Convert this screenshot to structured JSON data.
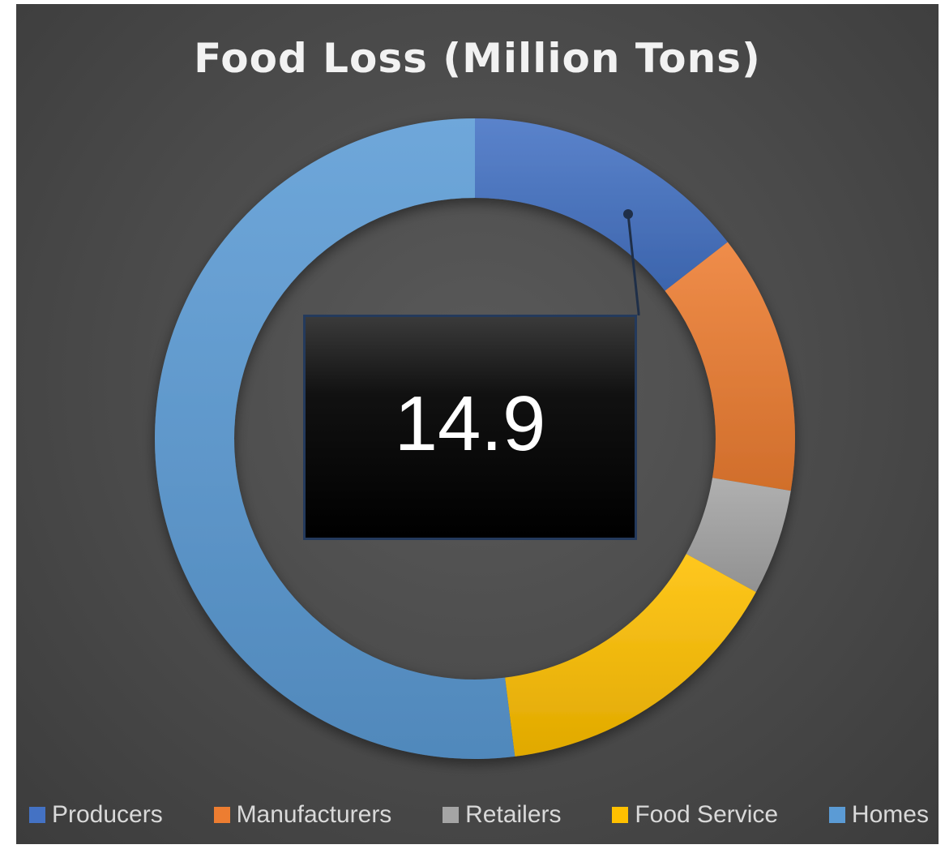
{
  "chart_data": {
    "type": "pie",
    "variant": "donut",
    "title": "Food Loss (Million Tons)",
    "categories": [
      "Producers",
      "Manufacturers",
      "Retailers",
      "Food Service",
      "Homes"
    ],
    "values": [
      14.9,
      13.5,
      5.5,
      15.5,
      53.5
    ],
    "colors": [
      "#4472c4",
      "#ed7d31",
      "#a5a5a5",
      "#ffc000",
      "#5b9bd5"
    ],
    "data_labels": [
      {
        "category": "Producers",
        "text": "14.9"
      }
    ],
    "legend_position": "bottom",
    "start_angle_deg": 0,
    "direction": "clockwise"
  }
}
